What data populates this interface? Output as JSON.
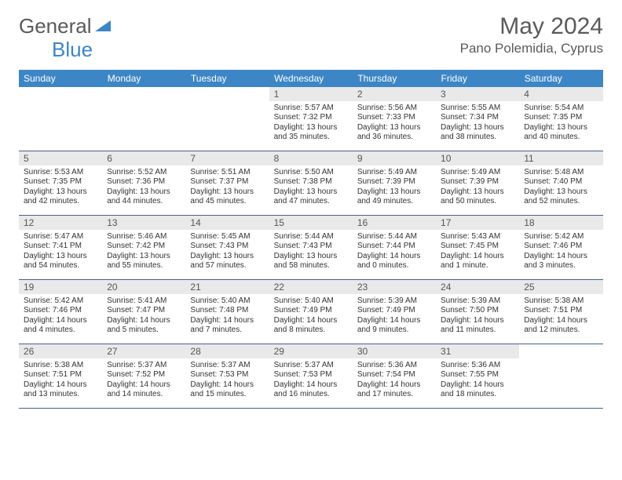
{
  "logo": {
    "word1": "General",
    "word2": "Blue"
  },
  "title": "May 2024",
  "location": "Pano Polemidia, Cyprus",
  "colors": {
    "header_bg": "#3d86c6",
    "header_text": "#ffffff",
    "daynum_bg": "#e9e9e9",
    "text_gray": "#5a5a5a",
    "rule": "#3c6490"
  },
  "weekdays": [
    "Sunday",
    "Monday",
    "Tuesday",
    "Wednesday",
    "Thursday",
    "Friday",
    "Saturday"
  ],
  "weeks": [
    [
      {
        "n": "",
        "lines": []
      },
      {
        "n": "",
        "lines": []
      },
      {
        "n": "",
        "lines": []
      },
      {
        "n": "1",
        "lines": [
          "Sunrise: 5:57 AM",
          "Sunset: 7:32 PM",
          "Daylight: 13 hours",
          "and 35 minutes."
        ]
      },
      {
        "n": "2",
        "lines": [
          "Sunrise: 5:56 AM",
          "Sunset: 7:33 PM",
          "Daylight: 13 hours",
          "and 36 minutes."
        ]
      },
      {
        "n": "3",
        "lines": [
          "Sunrise: 5:55 AM",
          "Sunset: 7:34 PM",
          "Daylight: 13 hours",
          "and 38 minutes."
        ]
      },
      {
        "n": "4",
        "lines": [
          "Sunrise: 5:54 AM",
          "Sunset: 7:35 PM",
          "Daylight: 13 hours",
          "and 40 minutes."
        ]
      }
    ],
    [
      {
        "n": "5",
        "lines": [
          "Sunrise: 5:53 AM",
          "Sunset: 7:35 PM",
          "Daylight: 13 hours",
          "and 42 minutes."
        ]
      },
      {
        "n": "6",
        "lines": [
          "Sunrise: 5:52 AM",
          "Sunset: 7:36 PM",
          "Daylight: 13 hours",
          "and 44 minutes."
        ]
      },
      {
        "n": "7",
        "lines": [
          "Sunrise: 5:51 AM",
          "Sunset: 7:37 PM",
          "Daylight: 13 hours",
          "and 45 minutes."
        ]
      },
      {
        "n": "8",
        "lines": [
          "Sunrise: 5:50 AM",
          "Sunset: 7:38 PM",
          "Daylight: 13 hours",
          "and 47 minutes."
        ]
      },
      {
        "n": "9",
        "lines": [
          "Sunrise: 5:49 AM",
          "Sunset: 7:39 PM",
          "Daylight: 13 hours",
          "and 49 minutes."
        ]
      },
      {
        "n": "10",
        "lines": [
          "Sunrise: 5:49 AM",
          "Sunset: 7:39 PM",
          "Daylight: 13 hours",
          "and 50 minutes."
        ]
      },
      {
        "n": "11",
        "lines": [
          "Sunrise: 5:48 AM",
          "Sunset: 7:40 PM",
          "Daylight: 13 hours",
          "and 52 minutes."
        ]
      }
    ],
    [
      {
        "n": "12",
        "lines": [
          "Sunrise: 5:47 AM",
          "Sunset: 7:41 PM",
          "Daylight: 13 hours",
          "and 54 minutes."
        ]
      },
      {
        "n": "13",
        "lines": [
          "Sunrise: 5:46 AM",
          "Sunset: 7:42 PM",
          "Daylight: 13 hours",
          "and 55 minutes."
        ]
      },
      {
        "n": "14",
        "lines": [
          "Sunrise: 5:45 AM",
          "Sunset: 7:43 PM",
          "Daylight: 13 hours",
          "and 57 minutes."
        ]
      },
      {
        "n": "15",
        "lines": [
          "Sunrise: 5:44 AM",
          "Sunset: 7:43 PM",
          "Daylight: 13 hours",
          "and 58 minutes."
        ]
      },
      {
        "n": "16",
        "lines": [
          "Sunrise: 5:44 AM",
          "Sunset: 7:44 PM",
          "Daylight: 14 hours",
          "and 0 minutes."
        ]
      },
      {
        "n": "17",
        "lines": [
          "Sunrise: 5:43 AM",
          "Sunset: 7:45 PM",
          "Daylight: 14 hours",
          "and 1 minute."
        ]
      },
      {
        "n": "18",
        "lines": [
          "Sunrise: 5:42 AM",
          "Sunset: 7:46 PM",
          "Daylight: 14 hours",
          "and 3 minutes."
        ]
      }
    ],
    [
      {
        "n": "19",
        "lines": [
          "Sunrise: 5:42 AM",
          "Sunset: 7:46 PM",
          "Daylight: 14 hours",
          "and 4 minutes."
        ]
      },
      {
        "n": "20",
        "lines": [
          "Sunrise: 5:41 AM",
          "Sunset: 7:47 PM",
          "Daylight: 14 hours",
          "and 5 minutes."
        ]
      },
      {
        "n": "21",
        "lines": [
          "Sunrise: 5:40 AM",
          "Sunset: 7:48 PM",
          "Daylight: 14 hours",
          "and 7 minutes."
        ]
      },
      {
        "n": "22",
        "lines": [
          "Sunrise: 5:40 AM",
          "Sunset: 7:49 PM",
          "Daylight: 14 hours",
          "and 8 minutes."
        ]
      },
      {
        "n": "23",
        "lines": [
          "Sunrise: 5:39 AM",
          "Sunset: 7:49 PM",
          "Daylight: 14 hours",
          "and 9 minutes."
        ]
      },
      {
        "n": "24",
        "lines": [
          "Sunrise: 5:39 AM",
          "Sunset: 7:50 PM",
          "Daylight: 14 hours",
          "and 11 minutes."
        ]
      },
      {
        "n": "25",
        "lines": [
          "Sunrise: 5:38 AM",
          "Sunset: 7:51 PM",
          "Daylight: 14 hours",
          "and 12 minutes."
        ]
      }
    ],
    [
      {
        "n": "26",
        "lines": [
          "Sunrise: 5:38 AM",
          "Sunset: 7:51 PM",
          "Daylight: 14 hours",
          "and 13 minutes."
        ]
      },
      {
        "n": "27",
        "lines": [
          "Sunrise: 5:37 AM",
          "Sunset: 7:52 PM",
          "Daylight: 14 hours",
          "and 14 minutes."
        ]
      },
      {
        "n": "28",
        "lines": [
          "Sunrise: 5:37 AM",
          "Sunset: 7:53 PM",
          "Daylight: 14 hours",
          "and 15 minutes."
        ]
      },
      {
        "n": "29",
        "lines": [
          "Sunrise: 5:37 AM",
          "Sunset: 7:53 PM",
          "Daylight: 14 hours",
          "and 16 minutes."
        ]
      },
      {
        "n": "30",
        "lines": [
          "Sunrise: 5:36 AM",
          "Sunset: 7:54 PM",
          "Daylight: 14 hours",
          "and 17 minutes."
        ]
      },
      {
        "n": "31",
        "lines": [
          "Sunrise: 5:36 AM",
          "Sunset: 7:55 PM",
          "Daylight: 14 hours",
          "and 18 minutes."
        ]
      },
      {
        "n": "",
        "lines": []
      }
    ]
  ]
}
